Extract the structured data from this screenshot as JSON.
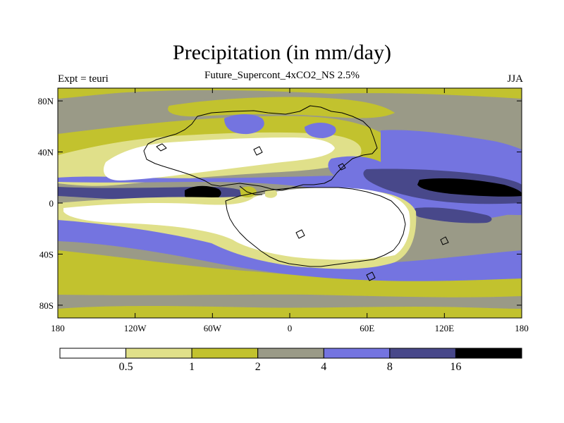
{
  "title": "Precipitation (in mm/day)",
  "subtitle": "Future_Supercont_4xCO2_NS 2.5%",
  "left_label": "Expt = teuri",
  "right_label": "JJA",
  "colors": {
    "level0": "#ffffff",
    "level1": "#e0e08a",
    "level2": "#c2c22e",
    "level3": "#9a9a87",
    "level4": "#7474e0",
    "level5": "#48488a",
    "level6": "#000000",
    "coastline": "#000000"
  },
  "lat_axis": {
    "ticks": [
      "80N",
      "40N",
      "0",
      "40S",
      "80S"
    ],
    "values": [
      80,
      40,
      0,
      -40,
      -80
    ],
    "range": [
      -90,
      90
    ]
  },
  "lon_axis": {
    "ticks": [
      "180",
      "120W",
      "60W",
      "0",
      "60E",
      "120E",
      "180"
    ],
    "values": [
      -180,
      -120,
      -60,
      0,
      60,
      120,
      180
    ],
    "range": [
      -180,
      180
    ]
  },
  "colorbar": {
    "labels": [
      "0.5",
      "1",
      "2",
      "4",
      "8",
      "16"
    ],
    "thresholds": [
      0.5,
      1,
      2,
      4,
      8,
      16
    ]
  }
}
